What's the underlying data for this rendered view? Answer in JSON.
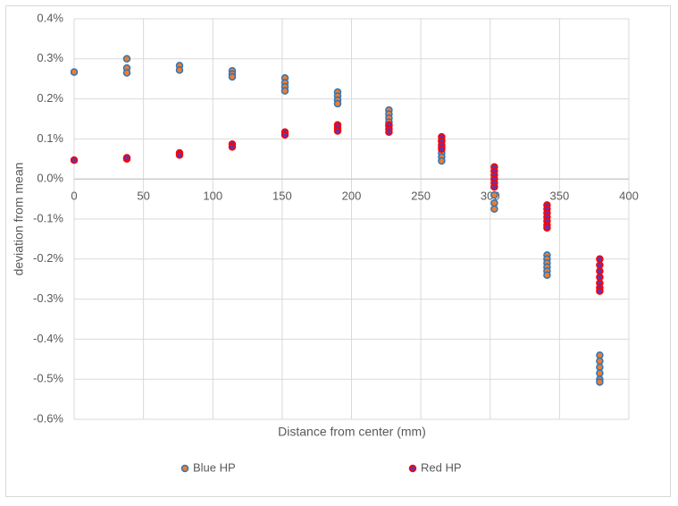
{
  "chart_data": {
    "type": "scatter",
    "xlabel": "Distance from center (mm)",
    "ylabel": "deviation from mean",
    "xlim": [
      0,
      400
    ],
    "xticks": [
      0,
      50,
      100,
      150,
      200,
      250,
      300,
      350,
      400
    ],
    "ylim": [
      -0.6,
      0.4
    ],
    "yticks": [
      {
        "value": -0.6,
        "label": "-0.6%"
      },
      {
        "value": -0.5,
        "label": "-0.5%"
      },
      {
        "value": -0.4,
        "label": "-0.4%"
      },
      {
        "value": -0.3,
        "label": "-0.3%"
      },
      {
        "value": -0.2,
        "label": "-0.2%"
      },
      {
        "value": -0.1,
        "label": "-0.1%"
      },
      {
        "value": 0,
        "label": "0.0%"
      },
      {
        "value": 0.1,
        "label": "0.1%"
      },
      {
        "value": 0.2,
        "label": "0.2%"
      },
      {
        "value": 0.3,
        "label": "0.3%"
      },
      {
        "value": 0.4,
        "label": "0.4%"
      }
    ],
    "grid": true,
    "legend": "bottom",
    "series": [
      {
        "name": "Blue HP",
        "color": "#ed7d31",
        "edgecolor": "#2e75b6",
        "x": [
          0,
          38,
          38,
          38,
          76,
          76,
          114,
          114,
          114,
          152,
          152,
          152,
          152,
          190,
          190,
          190,
          190,
          227,
          227,
          227,
          227,
          227,
          265,
          265,
          265,
          265,
          265,
          303,
          303,
          303,
          303,
          303,
          341,
          341,
          341,
          341,
          341,
          341,
          379,
          379,
          379,
          379,
          379,
          379
        ],
        "values": [
          0.267,
          0.3,
          0.277,
          0.265,
          0.283,
          0.272,
          0.27,
          0.262,
          0.255,
          0.252,
          0.24,
          0.23,
          0.22,
          0.217,
          0.207,
          0.197,
          0.188,
          0.172,
          0.162,
          0.152,
          0.142,
          0.132,
          0.095,
          0.08,
          0.065,
          0.055,
          0.045,
          0.0,
          -0.02,
          -0.04,
          -0.06,
          -0.075,
          -0.19,
          -0.2,
          -0.21,
          -0.22,
          -0.23,
          -0.24,
          -0.44,
          -0.455,
          -0.47,
          -0.485,
          -0.5,
          -0.507
        ]
      },
      {
        "name": "Red HP",
        "color": "#7030a0",
        "edgecolor": "#ff0000",
        "x": [
          0,
          38,
          38,
          76,
          76,
          114,
          114,
          152,
          152,
          190,
          190,
          190,
          227,
          227,
          227,
          265,
          265,
          265,
          265,
          303,
          303,
          303,
          303,
          303,
          303,
          341,
          341,
          341,
          341,
          341,
          341,
          341,
          379,
          379,
          379,
          379,
          379,
          379,
          379
        ],
        "values": [
          0.047,
          0.05,
          0.053,
          0.065,
          0.06,
          0.087,
          0.08,
          0.117,
          0.11,
          0.135,
          0.127,
          0.12,
          0.135,
          0.125,
          0.117,
          0.105,
          0.095,
          0.085,
          0.075,
          0.03,
          0.02,
          0.01,
          0.0,
          -0.01,
          -0.02,
          -0.065,
          -0.075,
          -0.085,
          -0.095,
          -0.105,
          -0.115,
          -0.122,
          -0.2,
          -0.215,
          -0.23,
          -0.245,
          -0.26,
          -0.272,
          -0.28
        ]
      }
    ]
  }
}
